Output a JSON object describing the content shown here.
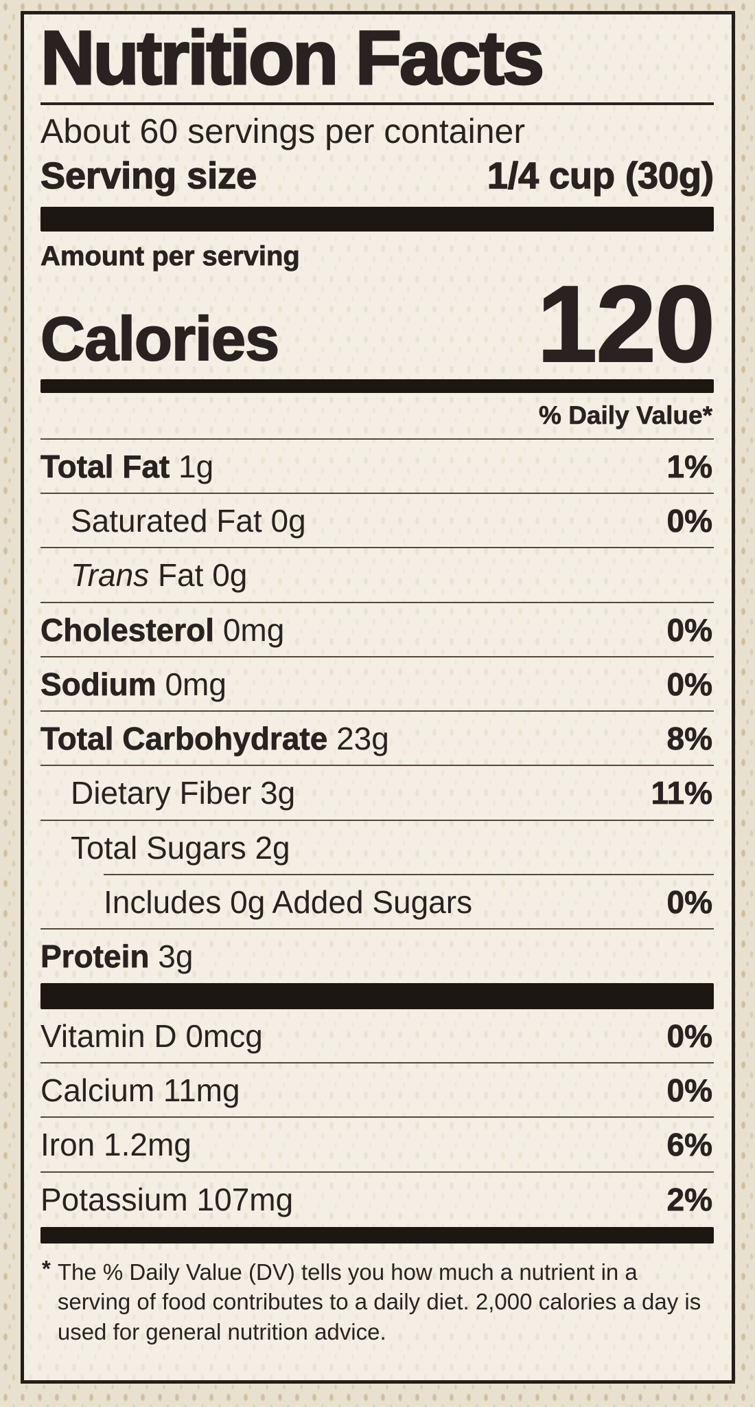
{
  "label": {
    "title": "Nutrition Facts",
    "servings_per_container": "About 60 servings per container",
    "serving_size": {
      "label": "Serving size",
      "value": "1/4 cup (30g)"
    },
    "amount_per_serving": "Amount per serving",
    "calories": {
      "label": "Calories",
      "value": "120"
    },
    "daily_value_header": "% Daily Value*",
    "nutrients": [
      {
        "bold": "Total Fat",
        "text": "1g",
        "dv": "1%",
        "indent": "none"
      },
      {
        "text": "Saturated Fat 0g",
        "dv": "0%",
        "indent": "pad"
      },
      {
        "italic": "Trans",
        "text": "Fat 0g",
        "dv": "",
        "indent": "pad"
      },
      {
        "bold": "Cholesterol",
        "text": "0mg",
        "dv": "0%",
        "indent": "none"
      },
      {
        "bold": "Sodium",
        "text": "0mg",
        "dv": "0%",
        "indent": "none"
      },
      {
        "bold": "Total Carbohydrate",
        "text": "23g",
        "dv": "8%",
        "indent": "none"
      },
      {
        "text": "Dietary Fiber 3g",
        "dv": "11%",
        "indent": "pad"
      },
      {
        "text": "Total Sugars 2g",
        "dv": "",
        "indent": "pad"
      },
      {
        "text": "Includes 0g Added Sugars",
        "dv": "0%",
        "indent": "margin2"
      },
      {
        "bold": "Protein",
        "text": "3g",
        "dv": "",
        "indent": "none"
      }
    ],
    "micronutrients": [
      {
        "text": "Vitamin D 0mcg",
        "dv": "0%"
      },
      {
        "text": "Calcium 11mg",
        "dv": "0%"
      },
      {
        "text": "Iron 1.2mg",
        "dv": "6%"
      },
      {
        "text": "Potassium 107mg",
        "dv": "2%"
      }
    ],
    "footnote_marker": "*",
    "footnote": "The % Daily Value (DV) tells you how much a nutrient in a serving of food contributes to a daily diet. 2,000 calories a day is used for general nutrition advice."
  },
  "colors": {
    "ink": "#292220",
    "bar": "#1d1713",
    "hairline": "#55473a",
    "background": "#e9e1cf",
    "texture_dot": "#baa47c"
  }
}
